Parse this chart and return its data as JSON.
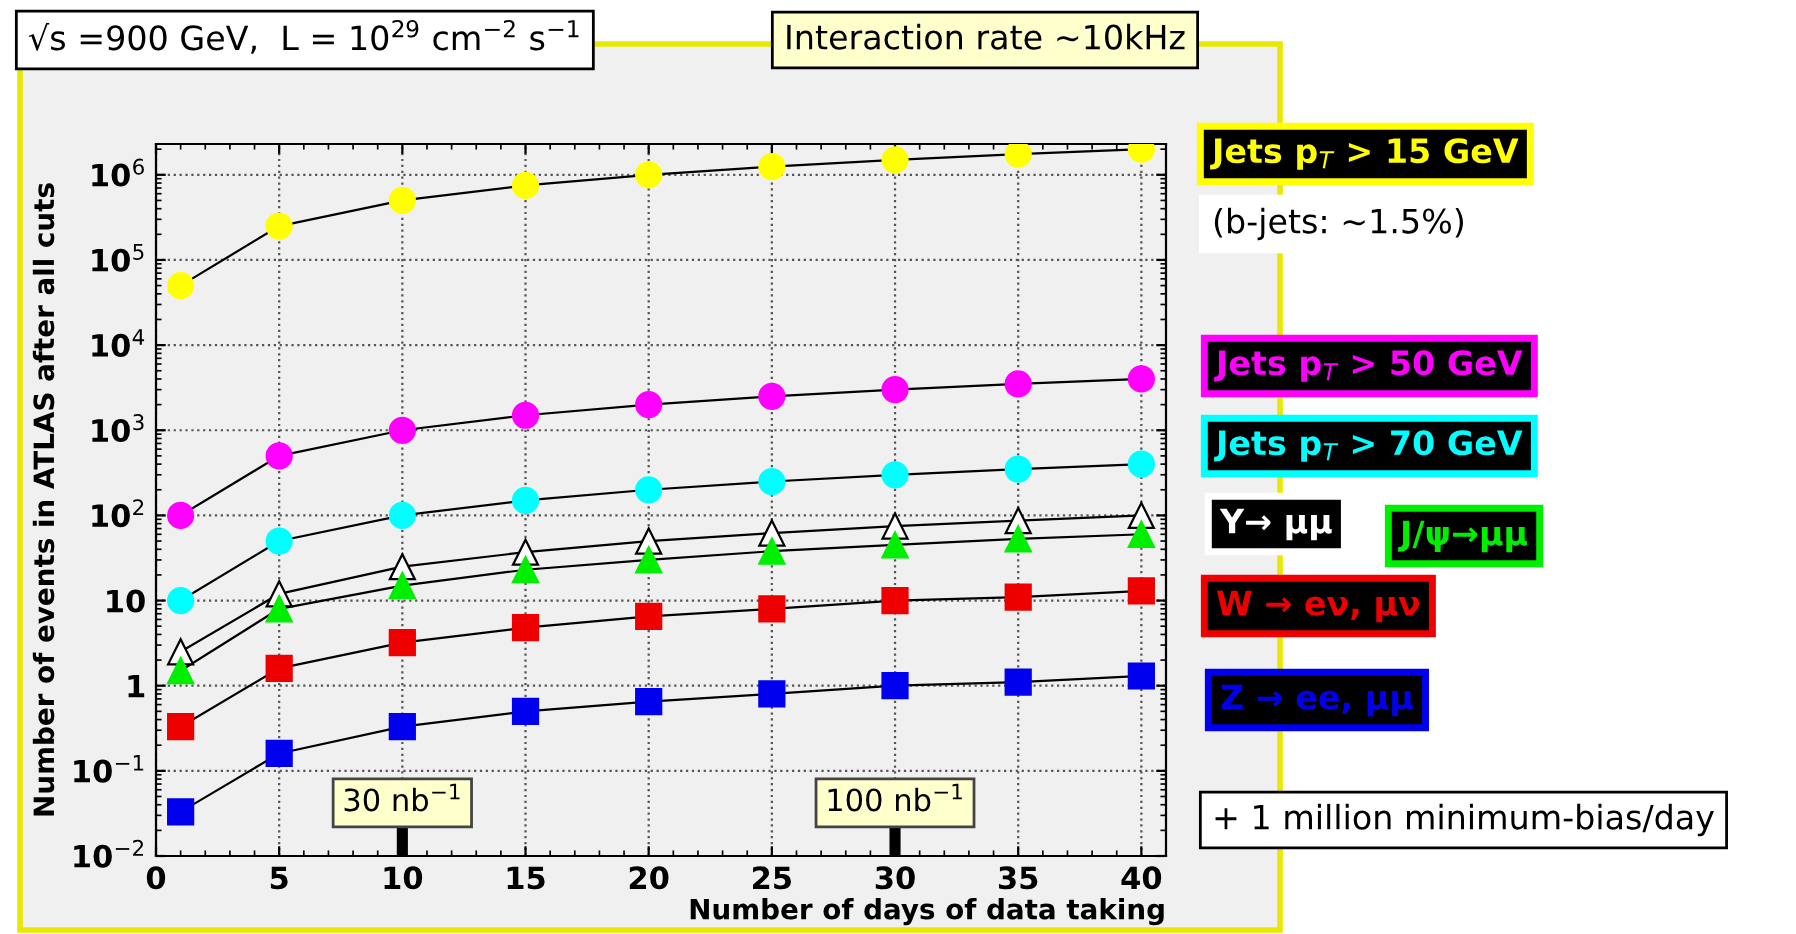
{
  "chart_data": {
    "type": "line",
    "xlabel": "Number of days of data taking",
    "ylabel": "Number of events in ATLAS after all cuts",
    "x": [
      1,
      5,
      10,
      15,
      20,
      25,
      30,
      35,
      40
    ],
    "series": [
      {
        "name": "Jets p$_{T}$ > 15 GeV",
        "color": "#ffff00",
        "marker": "circle",
        "values": [
          50000,
          250000,
          500000,
          750000,
          1000000,
          1250000,
          1500000,
          1750000,
          2000000
        ]
      },
      {
        "name": "Jets p$_{T}$ > 50 GeV",
        "color": "#ff00ff",
        "marker": "circle",
        "values": [
          100,
          500,
          1000,
          1500,
          2000,
          2500,
          3000,
          3500,
          4000
        ]
      },
      {
        "name": "Jets p$_{T}$ > 70 GeV",
        "color": "#00ffff",
        "marker": "circle",
        "values": [
          10,
          50,
          100,
          150,
          200,
          250,
          300,
          350,
          400
        ]
      },
      {
        "name": "Υ→ μμ",
        "color": "#ffffff",
        "marker": "triangle",
        "values": [
          2.5,
          12,
          25,
          37,
          50,
          62,
          75,
          87,
          100
        ]
      },
      {
        "name": "J/ψ→μμ",
        "color": "#00ee00",
        "marker": "triangle",
        "values": [
          1.5,
          8,
          15,
          23,
          30,
          38,
          45,
          53,
          60
        ]
      },
      {
        "name": "W → eν, μν",
        "color": "#ee0000",
        "marker": "square",
        "values": [
          0.33,
          1.6,
          3.2,
          4.8,
          6.5,
          8,
          10,
          11,
          13
        ]
      },
      {
        "name": "Z → ee, μμ",
        "color": "#0000ee",
        "marker": "square",
        "values": [
          0.033,
          0.16,
          0.33,
          0.5,
          0.65,
          0.8,
          1.0,
          1.1,
          1.3
        ]
      }
    ],
    "log": "y",
    "xlim": [
      0,
      41
    ],
    "xticks": [
      0,
      5,
      10,
      15,
      20,
      25,
      30,
      35,
      40
    ],
    "ylim": [
      0.01,
      2300000
    ],
    "yticks": [
      {
        "value": 0.01,
        "label": "10$^{−2}$"
      },
      {
        "value": 0.1,
        "label": "10$^{−1}$"
      },
      1,
      10,
      {
        "value": 100,
        "label": "10$^{2}$"
      },
      {
        "value": 1000,
        "label": "10$^{3}$"
      },
      {
        "value": 10000,
        "label": "10$^{4}$"
      },
      {
        "value": 100000,
        "label": "10$^{5}$"
      },
      {
        "value": 1000000,
        "label": "10$^{6}$"
      }
    ],
    "grid": true,
    "line_style": "solid",
    "legend": "right",
    "annotations": [
      "√s =900 GeV,  L = 10$^{29}$ cm$^{−2}$ s$^{−1}$",
      "Interaction rate ~10kHz",
      "(b-jets: ~1.5%)",
      "+ 1 million minimum-bias/day"
    ],
    "ref_lines": [
      {
        "axis": "x",
        "value": 10,
        "label": "30 nb$^{−1}$",
        "color": "#000000"
      },
      {
        "axis": "x",
        "value": 30,
        "label": "100 nb$^{−1}$",
        "color": "#000000"
      }
    ]
  }
}
